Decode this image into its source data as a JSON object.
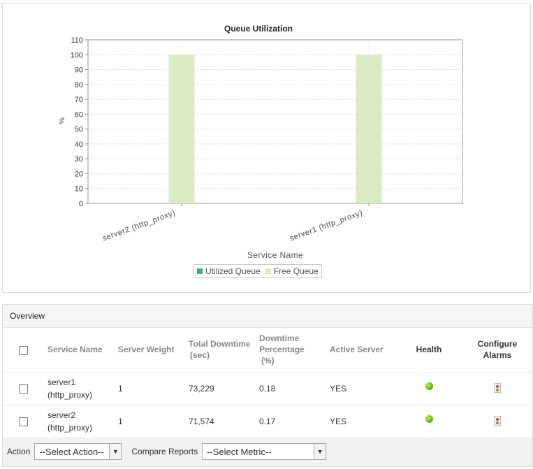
{
  "chart_data": {
    "type": "bar",
    "title": "Queue Utilization",
    "xlabel": "Service Name",
    "ylabel": "%",
    "ylim": [
      0,
      110
    ],
    "yticks": [
      0,
      10,
      20,
      30,
      40,
      50,
      60,
      70,
      80,
      90,
      100,
      110
    ],
    "categories": [
      "server2 (http_proxy)",
      "server1 (http_proxy)"
    ],
    "series": [
      {
        "name": "Utilized Queue",
        "values": [
          0,
          0
        ],
        "color": "#2bb48f"
      },
      {
        "name": "Free Queue",
        "values": [
          100,
          100
        ],
        "color": "#dbeac4"
      }
    ],
    "grid": true,
    "legend_position": "bottom"
  },
  "overview": {
    "title": "Overview",
    "columns": {
      "service_name": "Service Name",
      "server_weight": "Server Weight",
      "total_downtime_1": "Total Downtime",
      "total_downtime_2": "(sec)",
      "downtime_pct_1": "Downtime",
      "downtime_pct_2": "Percentage",
      "downtime_pct_3": "(%)",
      "active_server": "Active Server",
      "health": "Health",
      "configure_alarms_1": "Configure",
      "configure_alarms_2": "Alarms"
    },
    "rows": [
      {
        "name_1": "server1",
        "name_2": "(http_proxy)",
        "weight": "1",
        "downtime": "73,229",
        "pct": "0.18",
        "active": "YES",
        "health": "green"
      },
      {
        "name_1": "server2",
        "name_2": "(http_proxy)",
        "weight": "1",
        "downtime": "71,574",
        "pct": "0.17",
        "active": "YES",
        "health": "green"
      }
    ]
  },
  "footer": {
    "action_label": "Action",
    "action_select": "--Select Action--",
    "compare_label": "Compare Reports",
    "metric_select": "--Select Metric--"
  },
  "icons": {
    "health": "health-status-icon",
    "alarm": "alarm-config-icon",
    "dropdown": "chevron-down-icon"
  }
}
